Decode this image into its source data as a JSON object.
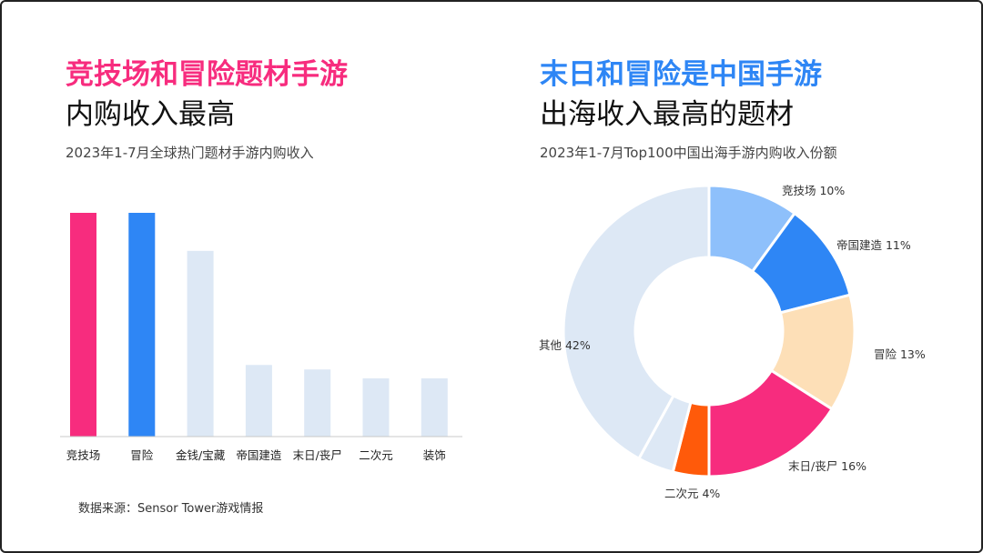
{
  "left": {
    "title_highlight": "竞技场和冒险题材手游",
    "title_rest": "内购收入最高",
    "subtitle": "2023年1-7月全球热门题材手游内购收入",
    "source": "数据来源：Sensor Tower游戏情报"
  },
  "right": {
    "title_highlight": "末日和冒险是中国手游",
    "title_rest": "出海收入最高的题材",
    "subtitle": "2023年1-7月Top100中国出海手游内购收入份额"
  },
  "colors": {
    "pink": "#F72C7E",
    "blue": "#2E86F5",
    "light": "#DDE8F5",
    "sky": "#8EC0FB",
    "peach": "#FDDFB7",
    "orange": "#FF5A0A"
  },
  "chart_data": [
    {
      "type": "bar",
      "categories": [
        "竞技场",
        "冒险",
        "金钱/宝藏",
        "帝国建造",
        "末日/丧尸",
        "二次元",
        "装饰"
      ],
      "values": [
        100,
        100,
        83,
        32,
        30,
        26,
        26
      ],
      "ylim": [
        0,
        100
      ],
      "bar_colors": [
        "#F72C7E",
        "#2E86F5",
        "#DDE8F5",
        "#DDE8F5",
        "#DDE8F5",
        "#DDE8F5",
        "#DDE8F5"
      ]
    },
    {
      "type": "pie",
      "style": "donut",
      "slices": [
        {
          "label": "竞技场 10%",
          "value": 10,
          "color": "#8EC0FB"
        },
        {
          "label": "帝国建造 11%",
          "value": 11,
          "color": "#2E86F5"
        },
        {
          "label": "冒险 13%",
          "value": 13,
          "color": "#FDDFB7"
        },
        {
          "label": "末日/丧尸 16%",
          "value": 16,
          "color": "#F72C7E"
        },
        {
          "label": "二次元 4%",
          "value": 4,
          "color": "#FF5A0A"
        },
        {
          "label": "",
          "value": 4,
          "color": "#DDE8F5"
        },
        {
          "label": "其他 42%",
          "value": 42,
          "color": "#DDE8F5"
        }
      ]
    }
  ]
}
